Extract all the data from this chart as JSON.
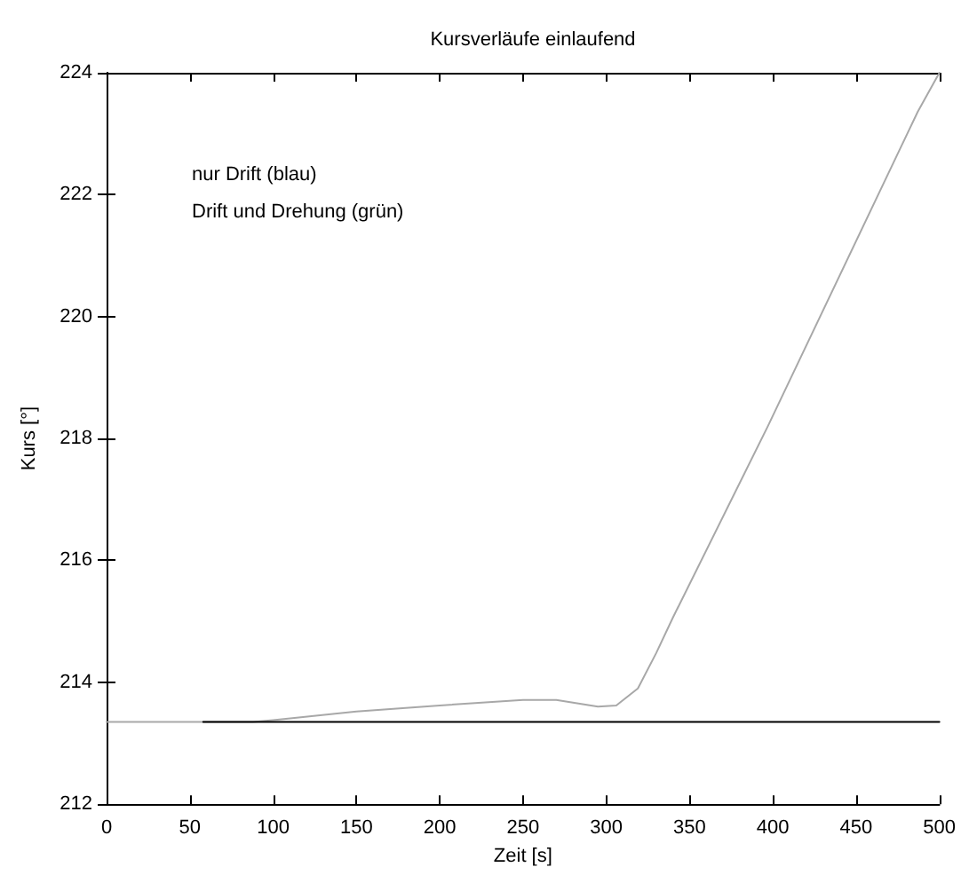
{
  "chart_data": {
    "type": "line",
    "title": "Kursverläufe einlaufend",
    "xlabel": "Zeit [s]",
    "ylabel": "Kurs [°]",
    "annotations": [
      "nur Drift (blau)",
      "Drift und Drehung (grün)"
    ],
    "xlim": [
      0,
      500
    ],
    "xticks": [
      0,
      50,
      100,
      150,
      200,
      250,
      300,
      350,
      400,
      450,
      500
    ],
    "ylim": [
      212,
      224
    ],
    "yticks": [
      212,
      214,
      216,
      218,
      220,
      222,
      224
    ],
    "grid": false,
    "marker": "none",
    "line_style": "solid",
    "series": [
      {
        "color": "#a8a8a8",
        "x": [
          0,
          88,
          100,
          150,
          200,
          250,
          270,
          295,
          306,
          319,
          330,
          340,
          397,
          487,
          500
        ],
        "values": [
          213.35,
          213.35,
          213.38,
          213.52,
          213.62,
          213.71,
          213.71,
          213.6,
          213.62,
          213.9,
          214.48,
          215.06,
          218.2,
          223.36,
          224
        ]
      },
      {
        "color": "#000000",
        "x": [
          58,
          500
        ],
        "values": [
          213.35,
          213.35
        ]
      }
    ]
  }
}
